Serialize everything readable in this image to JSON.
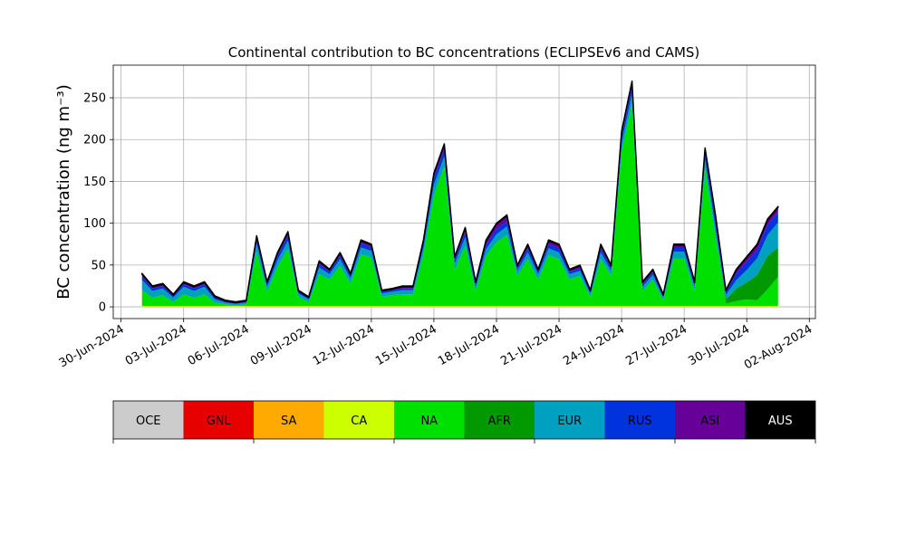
{
  "chart_data": {
    "type": "stacked_area",
    "title": "Continental contribution to BC concentrations (ECLIPSEv6 and CAMS)",
    "y_label": "BC concentration (ng m⁻³)",
    "grid": true,
    "legend": "bottom",
    "xlim": [
      "2024-06-29T15:00",
      "2024-08-02T07:00"
    ],
    "ylim": [
      -14,
      289
    ],
    "yticks": [
      0,
      50,
      100,
      150,
      200,
      250
    ],
    "xticks": [
      {
        "value": "2024-06-30T00:00",
        "label": "30-Jun-2024"
      },
      {
        "value": "2024-07-03T00:00",
        "label": "03-Jul-2024"
      },
      {
        "value": "2024-07-06T00:00",
        "label": "06-Jul-2024"
      },
      {
        "value": "2024-07-09T00:00",
        "label": "09-Jul-2024"
      },
      {
        "value": "2024-07-12T00:00",
        "label": "12-Jul-2024"
      },
      {
        "value": "2024-07-15T00:00",
        "label": "15-Jul-2024"
      },
      {
        "value": "2024-07-18T00:00",
        "label": "18-Jul-2024"
      },
      {
        "value": "2024-07-21T00:00",
        "label": "21-Jul-2024"
      },
      {
        "value": "2024-07-24T00:00",
        "label": "24-Jul-2024"
      },
      {
        "value": "2024-07-27T00:00",
        "label": "27-Jul-2024"
      },
      {
        "value": "2024-07-30T00:00",
        "label": "30-Jul-2024"
      },
      {
        "value": "2024-08-02T00:00",
        "label": "02-Aug-2024"
      }
    ],
    "x": [
      "2024-07-01T00:00",
      "2024-07-01T12:00",
      "2024-07-02T00:00",
      "2024-07-02T12:00",
      "2024-07-03T00:00",
      "2024-07-03T12:00",
      "2024-07-04T00:00",
      "2024-07-04T12:00",
      "2024-07-05T00:00",
      "2024-07-05T12:00",
      "2024-07-06T00:00",
      "2024-07-06T12:00",
      "2024-07-07T00:00",
      "2024-07-07T12:00",
      "2024-07-08T00:00",
      "2024-07-08T12:00",
      "2024-07-09T00:00",
      "2024-07-09T12:00",
      "2024-07-10T00:00",
      "2024-07-10T12:00",
      "2024-07-11T00:00",
      "2024-07-11T12:00",
      "2024-07-12T00:00",
      "2024-07-12T12:00",
      "2024-07-13T00:00",
      "2024-07-13T12:00",
      "2024-07-14T00:00",
      "2024-07-14T12:00",
      "2024-07-15T00:00",
      "2024-07-15T12:00",
      "2024-07-16T00:00",
      "2024-07-16T12:00",
      "2024-07-17T00:00",
      "2024-07-17T12:00",
      "2024-07-18T00:00",
      "2024-07-18T12:00",
      "2024-07-19T00:00",
      "2024-07-19T12:00",
      "2024-07-20T00:00",
      "2024-07-20T12:00",
      "2024-07-21T00:00",
      "2024-07-21T12:00",
      "2024-07-22T00:00",
      "2024-07-22T12:00",
      "2024-07-23T00:00",
      "2024-07-23T12:00",
      "2024-07-24T00:00",
      "2024-07-24T12:00",
      "2024-07-25T00:00",
      "2024-07-25T12:00",
      "2024-07-26T00:00",
      "2024-07-26T12:00",
      "2024-07-27T00:00",
      "2024-07-27T12:00",
      "2024-07-28T00:00",
      "2024-07-28T12:00",
      "2024-07-29T00:00",
      "2024-07-29T12:00",
      "2024-07-30T00:00",
      "2024-07-30T12:00",
      "2024-07-31T00:00",
      "2024-07-31T12:00"
    ],
    "series": [
      {
        "name": "OCE",
        "color": "#cccccc",
        "values": [
          0,
          0,
          0,
          0,
          0,
          0,
          0,
          0,
          0,
          0,
          0,
          0,
          0,
          0,
          0,
          0,
          0,
          0,
          0,
          0,
          0,
          0,
          0,
          0,
          0,
          0,
          0,
          0,
          0,
          0,
          0,
          0,
          0,
          0,
          0,
          0,
          0,
          0,
          0,
          0,
          0,
          0,
          0,
          0,
          0,
          0,
          0,
          0,
          0,
          0,
          0,
          0,
          0,
          0,
          0,
          0,
          0,
          0,
          0,
          0,
          0,
          0
        ]
      },
      {
        "name": "GNL",
        "color": "#e60000",
        "values": [
          0,
          0,
          0,
          0,
          0,
          0,
          0,
          0,
          0,
          0,
          0,
          0,
          0,
          0,
          0,
          0,
          0,
          0,
          0,
          0,
          0,
          0,
          0,
          0,
          0,
          0,
          0,
          0,
          0,
          0,
          0,
          0,
          0,
          0,
          0,
          0,
          0,
          0,
          0,
          0,
          0,
          0,
          0,
          0,
          0,
          0,
          0,
          0,
          0,
          0,
          0,
          0,
          0,
          0,
          0,
          0,
          0,
          0,
          0,
          0,
          0,
          0
        ]
      },
      {
        "name": "SA",
        "color": "#ffaa00",
        "values": [
          0,
          0,
          0,
          0,
          0,
          0,
          0,
          0,
          0,
          0,
          0,
          0,
          0,
          0,
          0,
          0,
          0,
          0,
          0,
          0,
          0,
          0,
          0,
          0,
          0,
          0,
          0,
          0,
          0,
          0,
          0,
          0,
          0,
          0,
          0,
          0,
          0,
          0,
          0,
          0,
          0,
          0,
          0,
          0,
          0,
          0,
          0,
          0,
          0,
          0,
          0,
          0,
          0,
          0,
          0,
          0,
          0,
          0,
          0,
          0,
          0,
          0
        ]
      },
      {
        "name": "CA",
        "color": "#ccff00",
        "values": [
          1,
          1,
          1,
          1,
          1,
          1,
          1,
          1,
          1,
          1,
          1,
          1,
          1,
          1,
          1,
          1,
          1,
          1,
          1,
          1,
          1,
          1,
          1,
          1,
          1,
          1,
          1,
          1,
          1,
          1,
          1,
          1,
          1,
          1,
          1,
          1,
          1,
          1,
          1,
          1,
          1,
          1,
          1,
          1,
          1,
          1,
          1,
          1,
          1,
          1,
          1,
          1,
          1,
          1,
          1,
          1,
          1,
          1,
          1,
          1,
          1,
          1
        ]
      },
      {
        "name": "NA",
        "color": "#00e000",
        "values": [
          19,
          10,
          13,
          5,
          14,
          10,
          14,
          4,
          2,
          0.5,
          2,
          65,
          17,
          47,
          68,
          11,
          5,
          38,
          32,
          48,
          27,
          62,
          58,
          11,
          13,
          14,
          14,
          62,
          133,
          167,
          43,
          72,
          18,
          60,
          76,
          85,
          36,
          56,
          32,
          61,
          56,
          32,
          36,
          11,
          56,
          36,
          185,
          242,
          18,
          31,
          7,
          57,
          57,
          18,
          165,
          84,
          3,
          6,
          8,
          7,
          20,
          35
        ]
      },
      {
        "name": "AFR",
        "color": "#009900",
        "values": [
          0,
          0,
          0,
          0,
          0,
          0,
          0,
          0,
          0,
          0,
          0,
          0,
          0,
          0,
          0,
          0,
          0,
          0,
          0,
          0,
          0,
          0,
          0,
          0,
          0,
          0,
          0,
          0,
          0,
          0,
          0,
          0,
          0,
          0,
          0,
          0,
          0,
          0,
          0,
          0,
          0,
          0,
          0,
          0,
          0,
          0,
          0,
          0,
          0,
          0,
          0,
          0,
          0,
          0,
          0,
          0,
          5,
          15,
          20,
          30,
          40,
          35
        ]
      },
      {
        "name": "EUR",
        "color": "#00a0c0",
        "values": [
          12,
          8,
          8,
          5,
          9,
          8,
          9,
          4,
          2,
          2,
          2,
          10,
          6,
          8,
          10,
          4,
          3,
          8,
          6,
          8,
          6,
          8,
          8,
          4,
          4,
          5,
          5,
          8,
          12,
          12,
          8,
          10,
          5,
          8,
          10,
          10,
          6,
          8,
          6,
          8,
          8,
          6,
          6,
          4,
          8,
          6,
          10,
          12,
          5,
          6,
          3,
          8,
          8,
          5,
          10,
          10,
          5,
          10,
          15,
          20,
          25,
          30
        ]
      },
      {
        "name": "RUS",
        "color": "#0033dd",
        "values": [
          4,
          3,
          3,
          2,
          3,
          3,
          3,
          2,
          1,
          1,
          1,
          5,
          3,
          5,
          6,
          2,
          1,
          4,
          3,
          4,
          3,
          5,
          4,
          2,
          2,
          2,
          2,
          5,
          8,
          8,
          4,
          6,
          3,
          5,
          6,
          6,
          3,
          5,
          3,
          5,
          5,
          3,
          3,
          2,
          5,
          3,
          8,
          8,
          3,
          3,
          2,
          5,
          5,
          3,
          8,
          8,
          3,
          8,
          10,
          10,
          12,
          12
        ]
      },
      {
        "name": "ASI",
        "color": "#660099",
        "values": [
          3,
          2,
          2,
          1,
          2,
          2,
          2,
          1,
          1,
          0.5,
          1,
          3,
          2,
          3,
          4,
          1,
          1,
          3,
          2,
          3,
          2,
          3,
          3,
          1,
          1,
          2,
          2,
          3,
          5,
          6,
          3,
          5,
          2,
          5,
          6,
          7,
          3,
          4,
          2,
          4,
          4,
          2,
          3,
          1,
          4,
          3,
          5,
          6,
          2,
          3,
          1,
          3,
          3,
          2,
          5,
          6,
          2,
          4,
          5,
          6,
          6,
          6
        ]
      },
      {
        "name": "AUS",
        "color": "#000000",
        "values": [
          1,
          1,
          1,
          1,
          1,
          1,
          1,
          1,
          1,
          1,
          1,
          1,
          1,
          1,
          1,
          1,
          1,
          1,
          1,
          1,
          1,
          1,
          1,
          1,
          1,
          1,
          1,
          1,
          1,
          1,
          1,
          1,
          1,
          1,
          1,
          1,
          1,
          1,
          1,
          1,
          1,
          1,
          1,
          1,
          1,
          1,
          1,
          1,
          1,
          1,
          1,
          1,
          1,
          1,
          1,
          1,
          1,
          1,
          1,
          1,
          1,
          1
        ]
      }
    ]
  }
}
